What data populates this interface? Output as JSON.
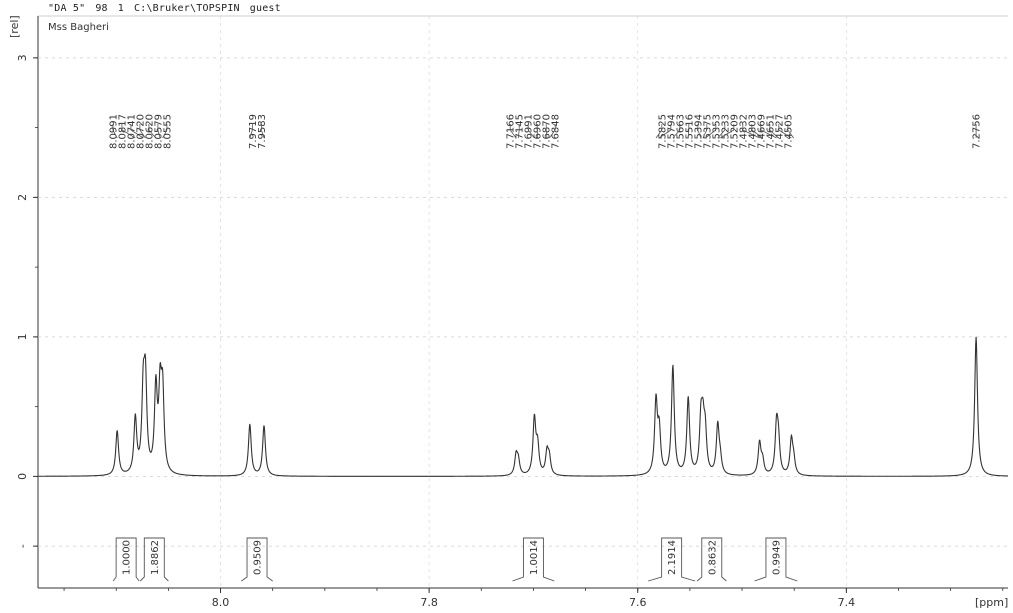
{
  "header": {
    "experiment": "\"DA 5\"",
    "expno": "98",
    "procno": "1",
    "path": "C:\\Bruker\\TOPSPIN",
    "user": "guest",
    "sample": "Mss Bagheri"
  },
  "chart_data": {
    "type": "line",
    "title": "",
    "xlabel": "[ppm]",
    "ylabel": "[rel]",
    "x_reversed": true,
    "xlim": [
      8.175,
      7.245
    ],
    "ylim": [
      -0.8,
      3.3
    ],
    "x_ticks": [
      "8.0",
      "7.8",
      "7.6",
      "7.4"
    ],
    "y_ticks": [
      "3",
      "2",
      "1",
      "0",
      "-"
    ],
    "peak_labels": [
      {
        "cluster": "8.0991",
        "labels": [
          "8.0991",
          "8.0817",
          "8.0741",
          "8.0720",
          "8.0620",
          "8.0579",
          "8.0555"
        ]
      },
      {
        "cluster": "7.9719",
        "labels": [
          "7.9719",
          "7.9583"
        ]
      },
      {
        "cluster": "7.7166",
        "labels": [
          "7.7166",
          "7.7145",
          "7.6991",
          "7.6960",
          "7.6870",
          "7.6848"
        ]
      },
      {
        "cluster": "7.5825",
        "labels": [
          "7.5825",
          "7.5794",
          "7.5663",
          "7.5516",
          "7.5394",
          "7.5375",
          "7.5353",
          "7.5233",
          "7.5209",
          "7.4832",
          "7.4803",
          "7.4669",
          "7.4651",
          "7.4527",
          "7.4505"
        ]
      },
      {
        "cluster": "7.2756",
        "labels": [
          "7.2756"
        ]
      }
    ],
    "peaks": [
      {
        "x": 8.0991,
        "y": 0.32
      },
      {
        "x": 8.0817,
        "y": 0.4
      },
      {
        "x": 8.0741,
        "y": 0.55
      },
      {
        "x": 8.072,
        "y": 0.62
      },
      {
        "x": 8.062,
        "y": 0.6
      },
      {
        "x": 8.0579,
        "y": 0.55
      },
      {
        "x": 8.0555,
        "y": 0.55
      },
      {
        "x": 7.9719,
        "y": 0.37
      },
      {
        "x": 7.9583,
        "y": 0.36
      },
      {
        "x": 7.7166,
        "y": 0.14
      },
      {
        "x": 7.7145,
        "y": 0.1
      },
      {
        "x": 7.6991,
        "y": 0.4
      },
      {
        "x": 7.696,
        "y": 0.2
      },
      {
        "x": 7.687,
        "y": 0.16
      },
      {
        "x": 7.6848,
        "y": 0.12
      },
      {
        "x": 7.5825,
        "y": 0.52
      },
      {
        "x": 7.5794,
        "y": 0.3
      },
      {
        "x": 7.5663,
        "y": 0.78
      },
      {
        "x": 7.5516,
        "y": 0.55
      },
      {
        "x": 7.5394,
        "y": 0.36
      },
      {
        "x": 7.5375,
        "y": 0.3
      },
      {
        "x": 7.5353,
        "y": 0.28
      },
      {
        "x": 7.5233,
        "y": 0.35
      },
      {
        "x": 7.5209,
        "y": 0.1
      },
      {
        "x": 7.4832,
        "y": 0.23
      },
      {
        "x": 7.4803,
        "y": 0.1
      },
      {
        "x": 7.4669,
        "y": 0.34
      },
      {
        "x": 7.4651,
        "y": 0.22
      },
      {
        "x": 7.4527,
        "y": 0.25
      },
      {
        "x": 7.4505,
        "y": 0.1
      },
      {
        "x": 7.2756,
        "y": 1.0
      }
    ],
    "integrals": [
      {
        "from": 8.103,
        "to": 8.078,
        "value": "1.0000"
      },
      {
        "from": 8.077,
        "to": 8.05,
        "value": "1.8862"
      },
      {
        "from": 7.98,
        "to": 7.95,
        "value": "0.9509"
      },
      {
        "from": 7.72,
        "to": 7.68,
        "value": "1.0014"
      },
      {
        "from": 7.59,
        "to": 7.545,
        "value": "2.1914"
      },
      {
        "from": 7.543,
        "to": 7.515,
        "value": "0.8632"
      },
      {
        "from": 7.488,
        "to": 7.447,
        "value": "0.9949"
      }
    ]
  }
}
